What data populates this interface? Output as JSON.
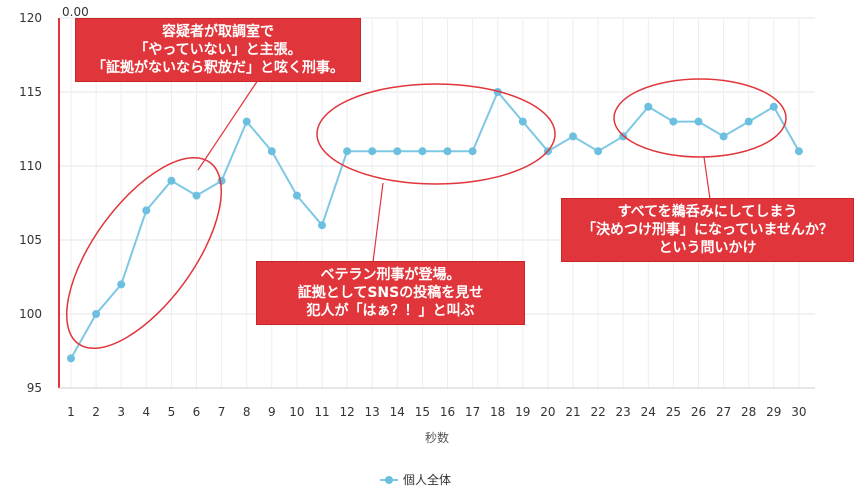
{
  "chart_data": {
    "type": "line",
    "x": [
      1,
      2,
      3,
      4,
      5,
      6,
      7,
      8,
      9,
      10,
      11,
      12,
      13,
      14,
      15,
      16,
      17,
      18,
      19,
      20,
      21,
      22,
      23,
      24,
      25,
      26,
      27,
      28,
      29,
      30
    ],
    "series": [
      {
        "name": "個人全体",
        "values": [
          97,
          100,
          102,
          107,
          109,
          108,
          109,
          113,
          111,
          108,
          106,
          111,
          111,
          111,
          111,
          111,
          111,
          115,
          113,
          111,
          112,
          111,
          112,
          114,
          113,
          113,
          112,
          113,
          114,
          111
        ]
      }
    ],
    "xlabel": "秒数",
    "ylabel": "",
    "ylim": [
      95,
      120
    ],
    "yticks": [
      95,
      100,
      105,
      110,
      115,
      120
    ],
    "grid": true,
    "legend_position": "bottom",
    "cursor_readout": "0.00",
    "line_color": "#7ec8e3",
    "marker_color": "#6cbfdf",
    "highlight_color": "#e0353b",
    "annotations": [
      {
        "lines": [
          "容疑者が取調室で",
          "「やっていない」と主張。",
          "「証拠がないなら釈放だ」と呟く刑事。"
        ]
      },
      {
        "lines": [
          "ベテラン刑事が登場。",
          "証拠としてSNSの投稿を見せ",
          "犯人が「はぁ？！」と叫ぶ"
        ]
      },
      {
        "lines": [
          "すべてを鵜呑みにしてしまう",
          "「決めつけ刑事」になっていませんか？",
          "という問いかけ"
        ]
      }
    ]
  }
}
